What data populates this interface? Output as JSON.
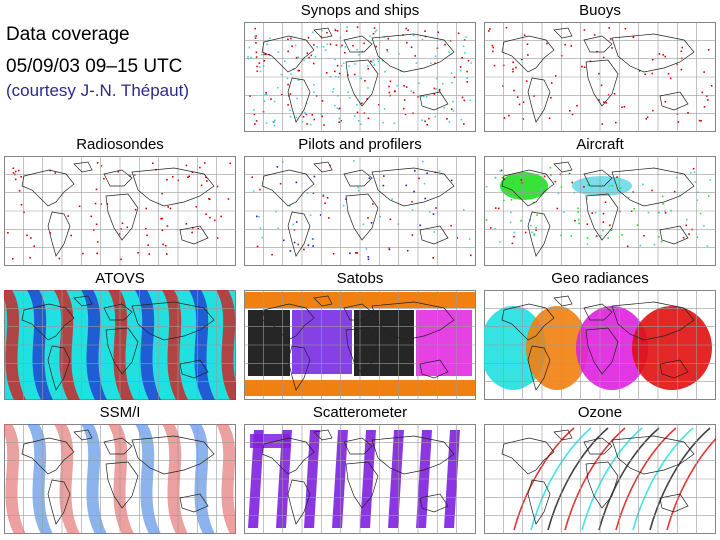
{
  "intro": {
    "title": "Data coverage",
    "date": "05/09/03 09–15 UTC",
    "credit": "(courtesy  J-.N. Thépaut)"
  },
  "panels": [
    {
      "id": "synops",
      "label": "Synops and ships",
      "colors": [
        "#e00000",
        "#40d0e0"
      ]
    },
    {
      "id": "buoys",
      "label": "Buoys",
      "colors": [
        "#e00000"
      ]
    },
    {
      "id": "radio",
      "label": "Radiosondes",
      "colors": [
        "#e00000"
      ]
    },
    {
      "id": "pilots",
      "label": "Pilots and profilers",
      "colors": [
        "#e00000",
        "#2020c0",
        "#40d0e0"
      ]
    },
    {
      "id": "aircraft",
      "label": "Aircraft",
      "colors": [
        "#20e020",
        "#40d0e0",
        "#e00000"
      ]
    },
    {
      "id": "atovs",
      "label": "ATOVS",
      "colors": [
        "#20e0e0",
        "#e01010",
        "#2030d0"
      ]
    },
    {
      "id": "satobs",
      "label": "Satobs",
      "colors": [
        "#f08010",
        "#000000",
        "#7020e0",
        "#e020e0"
      ]
    },
    {
      "id": "geo",
      "label": "Geo radiances",
      "colors": [
        "#20e0e0",
        "#f08010",
        "#e020e0",
        "#e01010"
      ]
    },
    {
      "id": "ssmi",
      "label": "SSM/I",
      "colors": [
        "#e06060",
        "#4080e0",
        "#20e0e0"
      ]
    },
    {
      "id": "scat",
      "label": "Scatterometer",
      "colors": [
        "#8020e0"
      ]
    },
    {
      "id": "ozone",
      "label": "Ozone",
      "colors": [
        "#e01010",
        "#20e0e0",
        "#202020"
      ]
    }
  ]
}
